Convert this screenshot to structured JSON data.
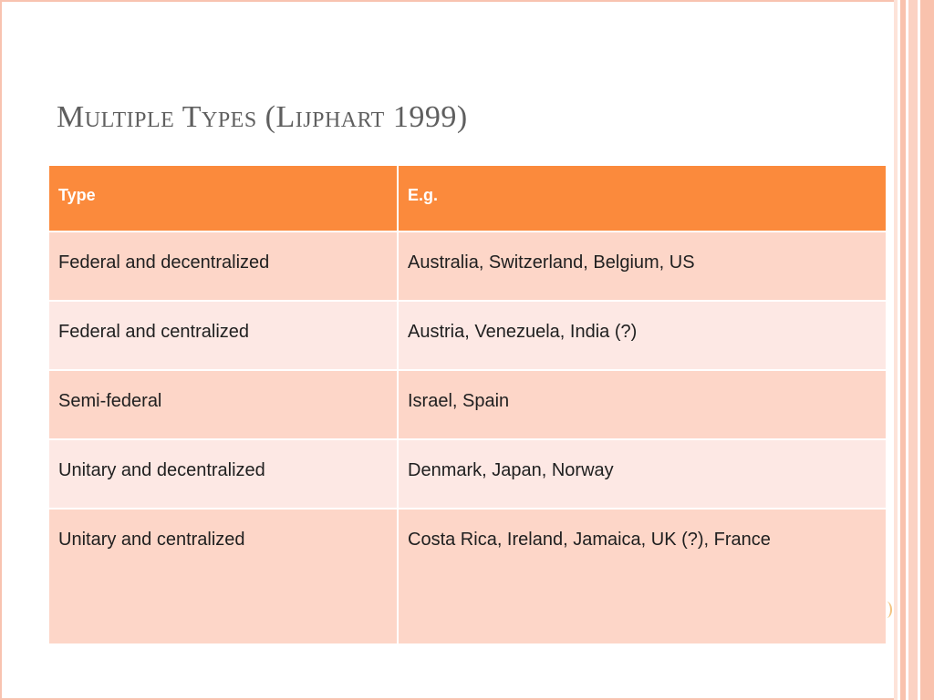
{
  "title": "Multiple Types (Lijphart 1999)",
  "table": {
    "headers": [
      "Type",
      "E.g."
    ],
    "rows": [
      [
        "Federal and decentralized",
        "Australia, Switzerland, Belgium, US"
      ],
      [
        "Federal and centralized",
        "Austria, Venezuela, India (?)"
      ],
      [
        "Semi-federal",
        "Israel, Spain"
      ],
      [
        "Unitary and decentralized",
        "Denmark, Japan, Norway"
      ],
      [
        "Unitary and centralized",
        "Costa Rica, Ireland, Jamaica, UK (?), France"
      ]
    ]
  },
  "colors": {
    "header": "#fb8a3c",
    "row_odd": "#fdd6c8",
    "row_even": "#fde8e4",
    "frame": "#f8c3b0",
    "title": "#5f5f5f"
  }
}
